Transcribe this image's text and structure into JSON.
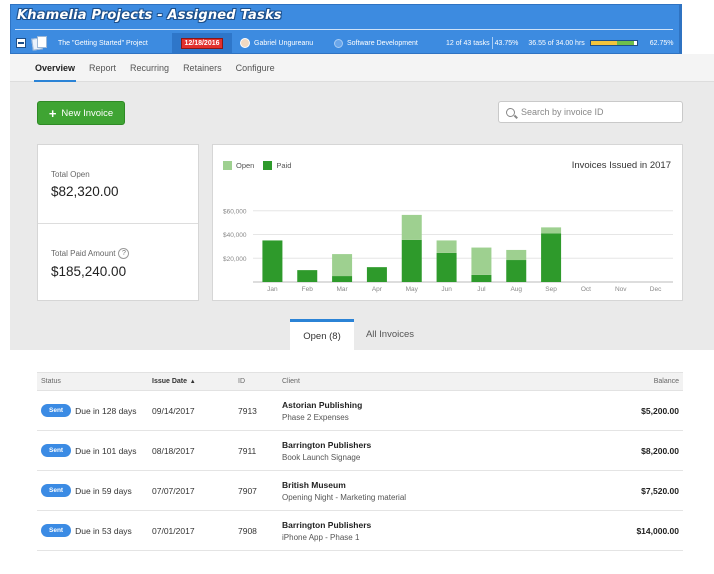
{
  "banner": {
    "title": "Khamelia Projects - Assigned Tasks",
    "project": "The \"Getting Started\" Project",
    "date": "12/18/2016",
    "user": "Gabriel Ungureanu",
    "group": "Software Development",
    "tasks": "12 of 43 tasks",
    "tasks_pct": "43.75%",
    "hours": "36.55 of 34.00 hrs",
    "hours_fill": 0.94,
    "hours_pct": "62.75%"
  },
  "nav": {
    "items": [
      "Overview",
      "Report",
      "Recurring",
      "Retainers",
      "Configure"
    ]
  },
  "toolbar": {
    "new_invoice_label": "New Invoice",
    "search_placeholder": "Search by invoice ID"
  },
  "totals": {
    "open_label": "Total Open",
    "open_value": "$82,320.00",
    "paid_label": "Total Paid Amount",
    "paid_value": "$185,240.00",
    "help_glyph": "?"
  },
  "chart_data": {
    "type": "bar",
    "stacked": true,
    "title": "Invoices Issued in 2017",
    "categories": [
      "Jan",
      "Feb",
      "Mar",
      "Apr",
      "May",
      "Jun",
      "Jul",
      "Aug",
      "Sep",
      "Oct",
      "Nov",
      "Dec"
    ],
    "series": [
      {
        "name": "Paid",
        "color": "#2e9a2b",
        "values": [
          35000,
          10000,
          5000,
          12500,
          35500,
          24500,
          6000,
          18500,
          41000,
          0,
          0,
          0
        ]
      },
      {
        "name": "Open",
        "color": "#9ed090",
        "values": [
          0,
          0,
          18500,
          0,
          21000,
          10500,
          23000,
          8500,
          5000,
          0,
          0,
          0
        ]
      }
    ],
    "ylim": [
      0,
      80000
    ],
    "yticks": [
      "$20,000",
      "$40,000",
      "$60,000"
    ],
    "ytick_values": [
      20000,
      40000,
      60000
    ],
    "grid": true,
    "legend": "top-left"
  },
  "tabs": [
    {
      "label": "Open (8)"
    },
    {
      "label": "All Invoices"
    }
  ],
  "table": {
    "headers": {
      "status": "Status",
      "date": "Issue Date",
      "id": "ID",
      "client": "Client",
      "balance": "Balance"
    },
    "rows": [
      {
        "badge": "Sent",
        "due": "Due in 128 days",
        "date": "09/14/2017",
        "id": "7913",
        "client": "Astorian Publishing",
        "desc": "Phase 2 Expenses",
        "balance": "$5,200.00"
      },
      {
        "badge": "Sent",
        "due": "Due in 101 days",
        "date": "08/18/2017",
        "id": "7911",
        "client": "Barrington Publishers",
        "desc": "Book Launch Signage",
        "balance": "$8,200.00"
      },
      {
        "badge": "Sent",
        "due": "Due in 59 days",
        "date": "07/07/2017",
        "id": "7907",
        "client": "British Museum",
        "desc": "Opening Night - Marketing material",
        "balance": "$7,520.00"
      },
      {
        "badge": "Sent",
        "due": "Due in 53 days",
        "date": "07/01/2017",
        "id": "7908",
        "client": "Barrington Publishers",
        "desc": "iPhone App - Phase 1",
        "balance": "$14,000.00"
      }
    ]
  }
}
